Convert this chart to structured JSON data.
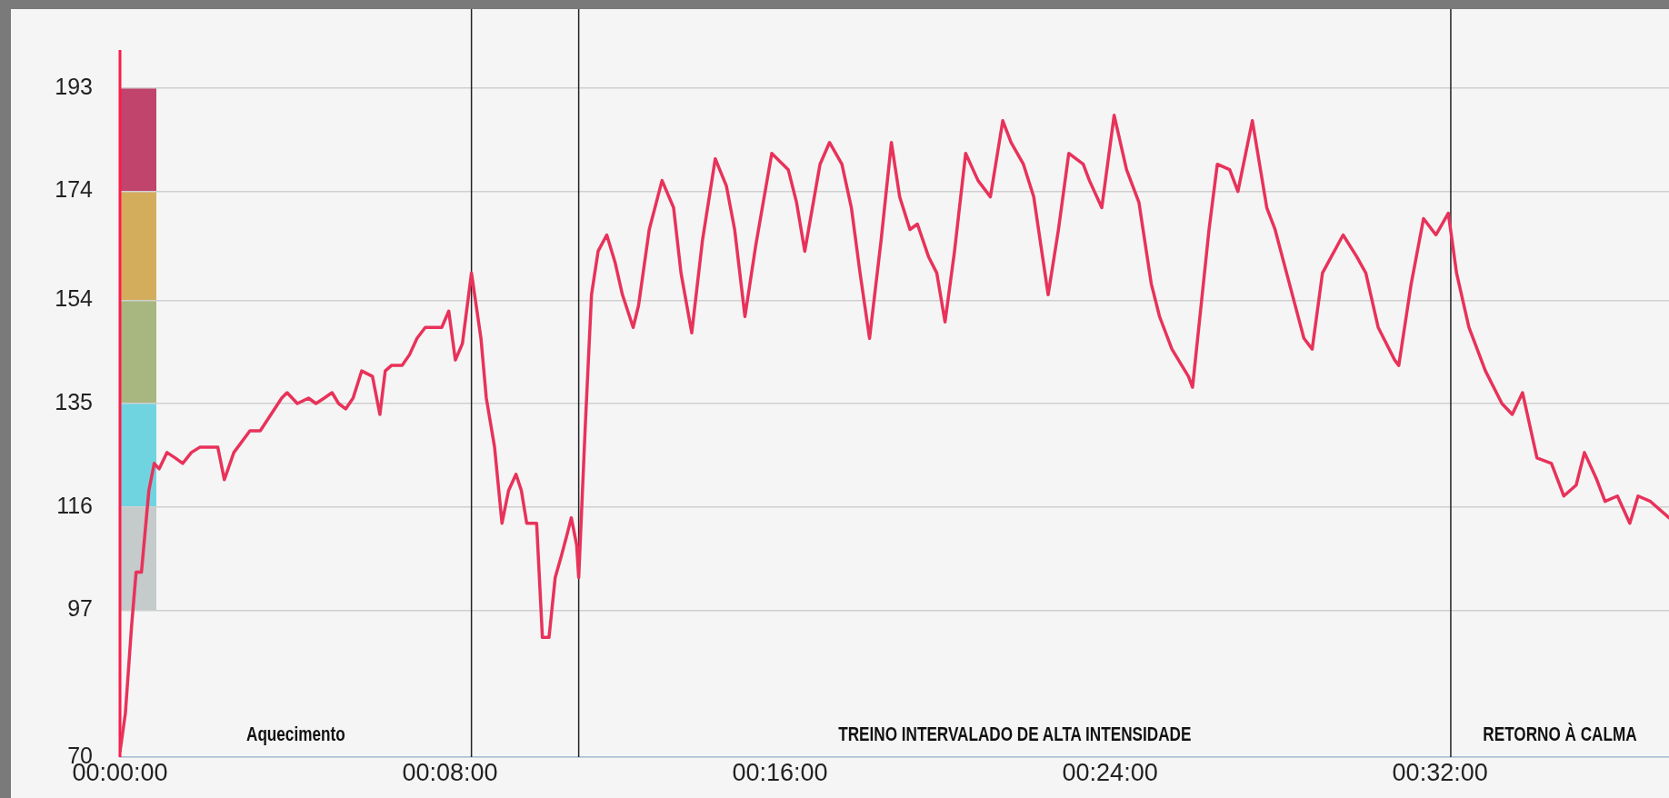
{
  "chart_data": {
    "type": "line",
    "x": [
      0,
      0.13,
      0.28,
      0.39,
      0.52,
      0.7,
      0.83,
      0.95,
      1.14,
      1.34,
      1.52,
      1.73,
      1.94,
      2.37,
      2.53,
      2.76,
      3.15,
      3.4,
      3.66,
      3.92,
      4.05,
      4.3,
      4.57,
      4.75,
      4.95,
      5.14,
      5.3,
      5.47,
      5.65,
      5.86,
      6.12,
      6.3,
      6.43,
      6.58,
      6.84,
      7.02,
      7.2,
      7.4,
      7.8,
      7.97,
      8.13,
      8.3,
      8.52,
      8.75,
      8.88,
      9.08,
      9.26,
      9.42,
      9.6,
      9.73,
      9.86,
      10.1,
      10.24,
      10.4,
      10.55,
      10.7,
      10.84,
      10.94,
      11.07,
      11.12,
      11.28,
      11.43,
      11.59,
      11.8,
      12.0,
      12.18,
      12.44,
      12.57,
      12.83,
      13.14,
      13.42,
      13.6,
      13.86,
      14.12,
      14.43,
      14.7,
      14.9,
      15.15,
      15.41,
      15.8,
      16.2,
      16.4,
      16.6,
      16.97,
      17.2,
      17.5,
      17.73,
      17.94,
      18.17,
      18.45,
      18.7,
      18.9,
      19.15,
      19.33,
      19.6,
      19.8,
      20.0,
      20.23,
      20.5,
      20.8,
      21.1,
      21.4,
      21.6,
      21.9,
      22.15,
      22.5,
      22.75,
      23.0,
      23.35,
      23.5,
      23.8,
      24.1,
      24.4,
      24.7,
      25.0,
      25.2,
      25.5,
      25.9,
      26.0,
      26.4,
      26.6,
      26.9,
      27.1,
      27.45,
      27.8,
      28.0,
      28.35,
      28.7,
      28.9,
      29.15,
      29.65,
      29.98,
      30.2,
      30.5,
      30.9,
      31.0,
      31.3,
      31.6,
      31.9,
      32.2,
      32.4,
      32.7,
      33.1,
      33.5,
      33.75,
      34.0,
      34.35,
      34.7,
      35.0,
      35.3,
      35.5,
      35.8,
      36.0,
      36.3,
      36.6,
      36.8,
      37.1,
      37.55
    ],
    "series": [
      {
        "color": "#e8325a",
        "values": [
          71,
          78,
          94,
          104,
          104,
          119,
          124,
          123,
          126,
          125,
          124,
          126,
          127,
          127,
          121,
          126,
          130,
          130,
          133,
          136,
          137,
          135,
          136,
          135,
          136,
          137,
          135,
          134,
          136,
          141,
          140,
          133,
          141,
          142,
          142,
          144,
          147,
          149,
          149,
          152,
          143,
          146,
          159,
          147,
          136,
          127,
          113,
          119,
          122,
          119,
          113,
          113,
          92,
          92,
          103,
          107,
          111,
          114,
          109,
          103,
          131,
          155,
          163,
          166,
          161,
          155,
          149,
          153,
          167,
          176,
          171,
          159,
          148,
          165,
          180,
          175,
          167,
          151,
          164,
          181,
          178,
          172,
          163,
          179,
          183,
          179,
          171,
          159,
          147,
          165,
          183,
          173,
          167,
          168,
          162,
          159,
          150,
          163,
          181,
          176,
          173,
          187,
          183,
          179,
          173,
          155,
          167,
          181,
          179,
          176,
          171,
          188,
          178,
          172,
          157,
          151,
          145,
          140,
          138,
          167,
          179,
          178,
          174,
          187,
          171,
          167,
          157,
          147,
          145,
          159,
          166,
          162,
          159,
          149,
          143,
          142,
          157,
          169,
          166,
          170,
          159,
          149,
          141,
          135,
          133,
          137,
          125,
          124,
          118,
          120,
          126,
          121,
          117,
          118,
          113,
          118,
          117,
          114
        ]
      }
    ],
    "xlim": [
      0,
      37.55
    ],
    "xticks": [
      {
        "value": 0,
        "label": "00:00:00"
      },
      {
        "value": 8,
        "label": "00:08:00"
      },
      {
        "value": 16,
        "label": "00:16:00"
      },
      {
        "value": 24,
        "label": "00:24:00"
      },
      {
        "value": 32,
        "label": "00:32:00"
      }
    ],
    "ylim": [
      70,
      200
    ],
    "yticks": [
      70,
      97,
      116,
      135,
      154,
      174,
      193
    ],
    "grid": "y",
    "legend": false,
    "marker": "none",
    "line_style": "solid",
    "ref_lines": [
      {
        "axis": "x",
        "value": 8.52,
        "color": "#222222"
      },
      {
        "axis": "x",
        "value": 11.12,
        "color": "#222222"
      },
      {
        "axis": "x",
        "value": 32.26,
        "color": "#222222"
      }
    ],
    "annotations": [
      "Aquecimento",
      "TREINO INTERVALADO DE ALTA INTENSIDADE",
      "RETORNO À CALMA"
    ]
  }
}
